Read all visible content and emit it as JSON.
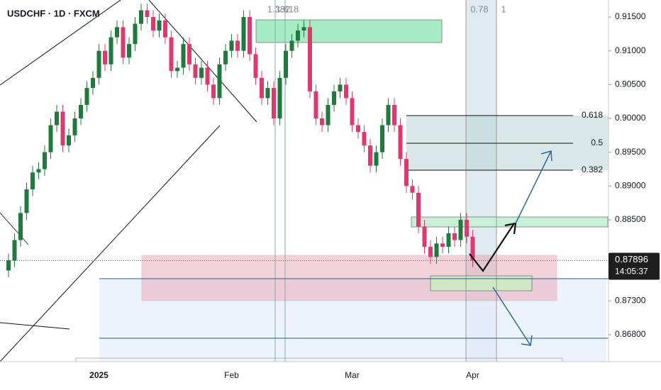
{
  "chart_data": {
    "type": "candlestick",
    "title": "USDCHF · 1D · FXCM",
    "categories": [
      null,
      null,
      null,
      null,
      null,
      null,
      null,
      null,
      null,
      null,
      null,
      null,
      null,
      null,
      null,
      "2025",
      null,
      null,
      null,
      null,
      null,
      null,
      null,
      null,
      null,
      null,
      null,
      null,
      null,
      null,
      null,
      null,
      null,
      null,
      null,
      null,
      null,
      "Feb",
      null,
      null,
      null,
      null,
      null,
      null,
      null,
      null,
      null,
      null,
      null,
      null,
      null,
      null,
      null,
      null,
      null,
      null,
      null,
      "Mar",
      null,
      null,
      null,
      null,
      null,
      null,
      null,
      null,
      null,
      null,
      null,
      null,
      null,
      null,
      null,
      null,
      null,
      null,
      null,
      "Apr"
    ],
    "open": [
      0.8775,
      0.879,
      0.882,
      0.886,
      0.8895,
      0.892,
      0.8925,
      0.895,
      0.899,
      0.901,
      0.896,
      0.8975,
      0.9,
      0.902,
      0.9045,
      0.906,
      0.91,
      0.908,
      0.912,
      0.9135,
      0.909,
      0.911,
      0.914,
      0.916,
      0.915,
      0.913,
      0.9145,
      0.912,
      0.907,
      0.9075,
      0.911,
      0.908,
      0.906,
      0.9075,
      0.905,
      0.903,
      0.908,
      0.91,
      0.9115,
      0.91,
      0.915,
      0.9095,
      0.906,
      0.903,
      0.9045,
      0.9,
      0.906,
      0.91,
      0.9115,
      0.913,
      0.9135,
      0.904,
      0.9,
      0.899,
      0.902,
      0.904,
      0.905,
      0.903,
      0.899,
      0.898,
      0.896,
      0.893,
      0.895,
      0.899,
      0.902,
      0.899,
      0.894,
      0.89,
      0.889,
      0.884,
      0.881,
      0.8795,
      0.8815,
      0.881,
      0.883,
      0.882,
      0.885,
      0.8825
    ],
    "high": [
      0.88,
      0.883,
      0.887,
      0.8905,
      0.893,
      0.8935,
      0.896,
      0.9,
      0.902,
      0.902,
      0.8985,
      0.901,
      0.903,
      0.9055,
      0.907,
      0.911,
      0.911,
      0.913,
      0.9145,
      0.9145,
      0.912,
      0.915,
      0.917,
      0.917,
      0.916,
      0.9155,
      0.9155,
      0.913,
      0.9085,
      0.912,
      0.912,
      0.909,
      0.9085,
      0.9085,
      0.906,
      0.909,
      0.911,
      0.9125,
      0.9125,
      0.916,
      0.916,
      0.9105,
      0.907,
      0.9055,
      0.9055,
      0.907,
      0.911,
      0.9125,
      0.914,
      0.9145,
      0.9145,
      0.905,
      0.901,
      0.903,
      0.905,
      0.906,
      0.906,
      0.904,
      0.9,
      0.899,
      0.897,
      0.896,
      0.9,
      0.903,
      0.903,
      0.9,
      0.895,
      0.891,
      0.89,
      0.885,
      0.882,
      0.8825,
      0.8825,
      0.884,
      0.884,
      0.886,
      0.886,
      0.8835
    ],
    "low": [
      0.8765,
      0.878,
      0.881,
      0.885,
      0.8885,
      0.891,
      0.8915,
      0.894,
      0.898,
      0.895,
      0.895,
      0.8965,
      0.899,
      0.901,
      0.9035,
      0.905,
      0.907,
      0.907,
      0.911,
      0.908,
      0.908,
      0.91,
      0.913,
      0.914,
      0.912,
      0.912,
      0.911,
      0.906,
      0.906,
      0.9065,
      0.907,
      0.905,
      0.905,
      0.904,
      0.902,
      0.902,
      0.907,
      0.909,
      0.909,
      0.909,
      0.9085,
      0.905,
      0.902,
      0.902,
      0.899,
      0.899,
      0.905,
      0.909,
      0.9105,
      0.912,
      0.903,
      0.899,
      0.898,
      0.898,
      0.901,
      0.903,
      0.902,
      0.898,
      0.897,
      0.895,
      0.892,
      0.892,
      0.894,
      0.898,
      0.898,
      0.893,
      0.889,
      0.888,
      0.883,
      0.88,
      0.8785,
      0.8785,
      0.88,
      0.88,
      0.881,
      0.881,
      0.8815,
      0.878
    ],
    "close": [
      0.879,
      0.882,
      0.886,
      0.8895,
      0.892,
      0.8925,
      0.895,
      0.899,
      0.901,
      0.896,
      0.8975,
      0.9,
      0.902,
      0.9045,
      0.906,
      0.91,
      0.908,
      0.912,
      0.9135,
      0.909,
      0.911,
      0.914,
      0.916,
      0.915,
      0.913,
      0.9145,
      0.912,
      0.907,
      0.9075,
      0.911,
      0.908,
      0.906,
      0.9075,
      0.905,
      0.903,
      0.908,
      0.91,
      0.9115,
      0.91,
      0.915,
      0.9095,
      0.906,
      0.903,
      0.9045,
      0.9,
      0.906,
      0.91,
      0.9115,
      0.913,
      0.9135,
      0.904,
      0.9,
      0.899,
      0.902,
      0.904,
      0.905,
      0.903,
      0.899,
      0.898,
      0.896,
      0.893,
      0.895,
      0.899,
      0.902,
      0.899,
      0.894,
      0.89,
      0.889,
      0.884,
      0.881,
      0.8795,
      0.8815,
      0.881,
      0.883,
      0.882,
      0.885,
      0.8825,
      0.879
    ],
    "up_color": "#1e7b3c",
    "down_color": "#e0386a",
    "ylim": [
      0.86401,
      0.91752
    ],
    "yticks": [
      {
        "value": 0.915,
        "label": "0.91500"
      },
      {
        "value": 0.91,
        "label": "0.91000"
      },
      {
        "value": 0.905,
        "label": "0.90500"
      },
      {
        "value": 0.9,
        "label": "0.90000"
      },
      {
        "value": 0.895,
        "label": "0.89500"
      },
      {
        "value": 0.89,
        "label": "0.89000"
      },
      {
        "value": 0.885,
        "label": "0.88500"
      },
      {
        "value": 0.873,
        "label": "0.87300"
      },
      {
        "value": 0.868,
        "label": "0.86800"
      }
    ],
    "last_price": {
      "value": 0.87896,
      "label": "0.87896"
    },
    "countdown": "14:05:37",
    "fib_levels": [
      {
        "value": 0.90042,
        "label": "0.618"
      },
      {
        "value": 0.89633,
        "label": "0.5"
      },
      {
        "value": 0.89234,
        "label": "0.382"
      }
    ],
    "annotations": [
      "1.382",
      "1.618",
      "0.78",
      "1"
    ]
  }
}
